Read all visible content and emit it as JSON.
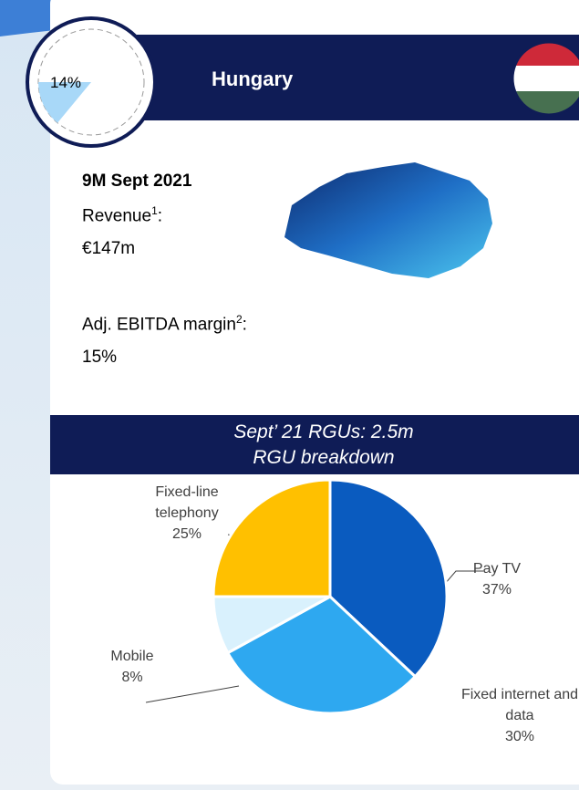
{
  "header": {
    "title": "Hungary"
  },
  "stats": {
    "period": "9M Sept 2021",
    "revenue_label": "Revenue",
    "revenue_note": "1",
    "revenue_value": "€147m",
    "margin_label": "Adj. EBITDA margin",
    "margin_note": "2",
    "margin_value": "15%"
  },
  "chart_data": [
    {
      "type": "pie",
      "values": [
        14
      ],
      "value_labels": [
        "14%"
      ],
      "color": "#a8d8f8"
    },
    {
      "type": "pie",
      "title": "Sept’ 21 RGUs: 2.5m",
      "subtitle": "RGU breakdown",
      "categories": [
        "Pay TV",
        "Fixed internet and data",
        "Mobile",
        "Fixed-line telephony"
      ],
      "values": [
        37,
        30,
        8,
        25
      ],
      "value_labels": [
        "37%",
        "30%",
        "8%",
        "25%"
      ],
      "colors": [
        "#0a5bbf",
        "#2ea8f0",
        "#d9f1fd",
        "#ffc000"
      ]
    }
  ]
}
